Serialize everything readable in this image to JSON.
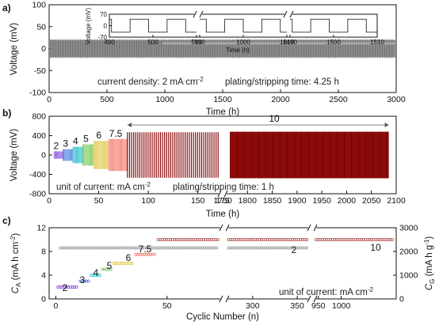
{
  "panel_labels": [
    "a)",
    "b)",
    "c)"
  ],
  "chart_data": [
    {
      "panel": "a",
      "type": "line",
      "xlabel": "Time (h)",
      "ylabel": "Voltage (mV)",
      "xlim": [
        0,
        3000
      ],
      "ylim": [
        -100,
        100
      ],
      "x_ticks": [
        "0",
        "500",
        "1000",
        "1500",
        "2000",
        "2500",
        "3000"
      ],
      "y_ticks": [
        "100",
        "50",
        "0",
        "-50",
        "-100"
      ],
      "voltage_band_mV": [
        -20,
        20
      ],
      "annotation_current": "current density: 2 mA cm",
      "annotation_current_sup": "-2",
      "annotation_time": "plating/stripping time: 4.25 h",
      "inset": {
        "type": "line",
        "xlabel": "Time (h)",
        "ylabel": "Voltage (mV)",
        "ylim": [
          -70,
          70
        ],
        "y_ticks": [
          "70",
          "0",
          "-70"
        ],
        "segments": [
          {
            "x_ticks": [
              "490",
              "500",
              "510"
            ],
            "xlim": [
              490,
              510
            ]
          },
          {
            "x_ticks": [
              "990",
              "1000",
              "1010"
            ],
            "xlim": [
              990,
              1010
            ]
          },
          {
            "x_ticks": [
              "1490",
              "1500",
              "1510"
            ],
            "xlim": [
              1490,
              1510
            ]
          }
        ],
        "square_wave_amplitude_mV": 40,
        "half_period_h": 4.25
      }
    },
    {
      "panel": "b",
      "type": "line",
      "xlabel": "Time (h)",
      "ylabel": "Voltage (mV)",
      "ylim": [
        -800,
        800
      ],
      "y_ticks": [
        "800",
        "400",
        "0",
        "-400",
        "-800"
      ],
      "x_ticks_left": [
        "0",
        "50",
        "100",
        "150",
        "175"
      ],
      "x_ticks_right": [
        "1750",
        "1800",
        "1850",
        "1900",
        "1950",
        "2000",
        "2050",
        "2100"
      ],
      "xlim_left": [
        0,
        175
      ],
      "xlim_right": [
        1750,
        2100
      ],
      "steps": [
        {
          "current": "2",
          "t_start": 5,
          "t_end": 14,
          "amplitude_mV": 75,
          "color": "#7b3fd6"
        },
        {
          "current": "3",
          "t_start": 14,
          "t_end": 24,
          "amplitude_mV": 120,
          "color": "#3a6fe0"
        },
        {
          "current": "4",
          "t_start": 24,
          "t_end": 34,
          "amplitude_mV": 170,
          "color": "#19b5c9"
        },
        {
          "current": "5",
          "t_start": 34,
          "t_end": 45,
          "amplitude_mV": 220,
          "color": "#6cc44a"
        },
        {
          "current": "6",
          "t_start": 45,
          "t_end": 60,
          "amplitude_mV": 290,
          "color": "#e0c23a"
        },
        {
          "current": "7.5",
          "t_start": 60,
          "t_end": 79,
          "amplitude_mV": 330,
          "color": "#f26f63"
        },
        {
          "current": "10",
          "t_start": 79,
          "t_end": 2085,
          "amplitude_mV": 450,
          "color": "#8b0a0a"
        }
      ],
      "step_label_colors": [
        "#7b3fd6",
        "#3a6fe0",
        "#19b5c9",
        "#6cc44a",
        "#e0c23a",
        "#f0312a",
        "#8b0a0a"
      ],
      "annotation_unit": "unit of current: mA cm",
      "annotation_unit_sup": "-2",
      "annotation_time": "plating/stripping time: 1 h"
    },
    {
      "panel": "c",
      "type": "scatter",
      "xlabel": "Cyclic Number (n)",
      "ylabel_left": "C",
      "ylabel_left_sub": "A",
      "ylabel_left_unit": " (mA h cm",
      "ylabel_left_unit_sup": "-2",
      "ylabel_left_unit_end": ")",
      "ylabel_right": "C",
      "ylabel_right_sub": "G",
      "ylabel_right_unit": " (mA h g",
      "ylabel_right_unit_sup": "-1",
      "ylabel_right_unit_end": ")",
      "ylim_left": [
        0,
        12
      ],
      "ylim_right": [
        0,
        3000
      ],
      "y_ticks_left": [
        "12",
        "8",
        "4",
        "0"
      ],
      "y_ticks_right": [
        "3000",
        "2000",
        "1000",
        "0"
      ],
      "x_ticks": [
        "0",
        "50",
        "300",
        "350",
        "950",
        "1000"
      ],
      "xlim_segments": [
        [
          -3,
          75
        ],
        [
          270,
          365
        ],
        [
          940,
          1120
        ]
      ],
      "gravimetric_capacity_mAh_g": 2150,
      "step_capacities": [
        {
          "current": "2",
          "cycle_start": 1,
          "cycle_end": 10,
          "areal_mAh_cm2": 2,
          "color": "#7b3fd6"
        },
        {
          "current": "3",
          "cycle_start": 11,
          "cycle_end": 15,
          "areal_mAh_cm2": 3,
          "color": "#3a6fe0"
        },
        {
          "current": "4",
          "cycle_start": 16,
          "cycle_end": 20,
          "areal_mAh_cm2": 4,
          "color": "#19b5c9"
        },
        {
          "current": "5",
          "cycle_start": 21,
          "cycle_end": 25,
          "areal_mAh_cm2": 5,
          "color": "#6cc44a"
        },
        {
          "current": "6",
          "cycle_start": 26,
          "cycle_end": 35,
          "areal_mAh_cm2": 6,
          "color": "#e0c23a"
        },
        {
          "current": "7.5",
          "cycle_start": 36,
          "cycle_end": 45,
          "areal_mAh_cm2": 7.5,
          "color": "#f26f63"
        },
        {
          "current": "10",
          "cycle_start": 46,
          "cycle_end": 1115,
          "areal_mAh_cm2": 10,
          "color": "#b04a4a"
        }
      ],
      "gray_series_label": "2",
      "annotation_unit": "unit of current: mA cm",
      "annotation_unit_sup": "-2"
    }
  ]
}
